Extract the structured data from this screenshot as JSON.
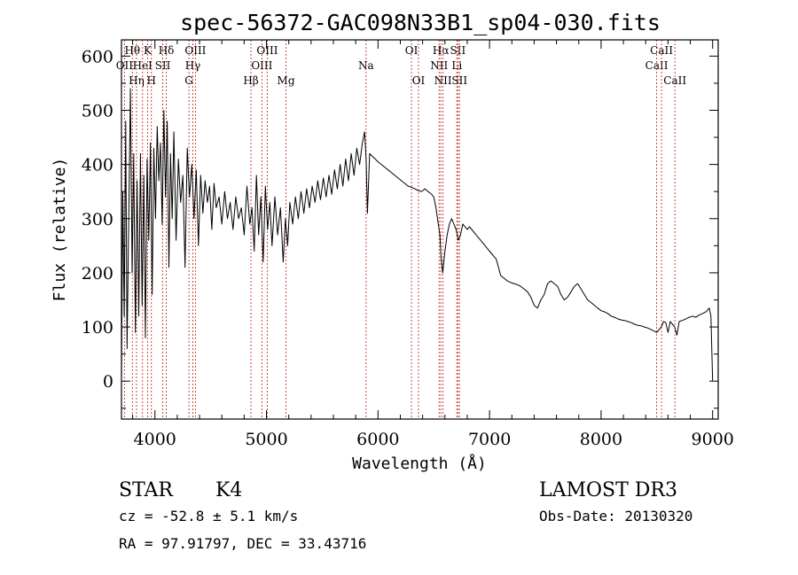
{
  "chart_data": {
    "type": "line",
    "title": "spec-56372-GAC098N33B1_sp04-030.fits",
    "xlabel": "Wavelength (Å)",
    "ylabel": "Flux (relative)",
    "xlim": [
      3700,
      9050
    ],
    "ylim": [
      -70,
      630
    ],
    "x_ticks": [
      4000,
      5000,
      6000,
      7000,
      8000,
      9000
    ],
    "y_ticks": [
      0,
      100,
      200,
      300,
      400,
      500,
      600
    ],
    "spectral_lines": [
      {
        "label": "OII",
        "wavelength": 3727,
        "row": 2
      },
      {
        "label": "Hθ",
        "wavelength": 3798,
        "row": 1
      },
      {
        "label": "Hη",
        "wavelength": 3835,
        "row": 3
      },
      {
        "label": "HeI",
        "wavelength": 3889,
        "row": 2
      },
      {
        "label": "K",
        "wavelength": 3934,
        "row": 1
      },
      {
        "label": "H",
        "wavelength": 3968,
        "row": 3
      },
      {
        "label": "SII",
        "wavelength": 4070,
        "row": 2
      },
      {
        "label": "Hδ",
        "wavelength": 4102,
        "row": 1
      },
      {
        "label": "G",
        "wavelength": 4305,
        "row": 3
      },
      {
        "label": "Hγ",
        "wavelength": 4340,
        "row": 2
      },
      {
        "label": "OIII",
        "wavelength": 4363,
        "row": 1
      },
      {
        "label": "Hβ",
        "wavelength": 4861,
        "row": 3
      },
      {
        "label": "OIII",
        "wavelength": 4959,
        "row": 2
      },
      {
        "label": "OIII",
        "wavelength": 5007,
        "row": 1
      },
      {
        "label": "Mg",
        "wavelength": 5175,
        "row": 3
      },
      {
        "label": "Na",
        "wavelength": 5893,
        "row": 2
      },
      {
        "label": "OI",
        "wavelength": 6300,
        "row": 1
      },
      {
        "label": "OI",
        "wavelength": 6363,
        "row": 3
      },
      {
        "label": "NII",
        "wavelength": 6548,
        "row": 2
      },
      {
        "label": "Hα",
        "wavelength": 6563,
        "row": 1
      },
      {
        "label": "NII",
        "wavelength": 6583,
        "row": 3
      },
      {
        "label": "Li",
        "wavelength": 6707,
        "row": 2
      },
      {
        "label": "SII",
        "wavelength": 6716,
        "row": 1
      },
      {
        "label": "SII",
        "wavelength": 6731,
        "row": 3
      },
      {
        "label": "CaII",
        "wavelength": 8498,
        "row": 2
      },
      {
        "label": "CaII",
        "wavelength": 8542,
        "row": 1
      },
      {
        "label": "CaII",
        "wavelength": 8662,
        "row": 3
      }
    ],
    "series": [
      {
        "name": "flux",
        "x": [
          3700,
          3712,
          3725,
          3738,
          3750,
          3765,
          3780,
          3795,
          3810,
          3825,
          3840,
          3855,
          3870,
          3885,
          3900,
          3915,
          3930,
          3945,
          3960,
          3975,
          3990,
          4005,
          4020,
          4035,
          4050,
          4065,
          4080,
          4095,
          4110,
          4125,
          4140,
          4155,
          4170,
          4190,
          4210,
          4230,
          4250,
          4270,
          4290,
          4310,
          4330,
          4350,
          4370,
          4390,
          4410,
          4430,
          4450,
          4470,
          4490,
          4510,
          4530,
          4550,
          4575,
          4600,
          4625,
          4650,
          4675,
          4700,
          4725,
          4750,
          4775,
          4800,
          4825,
          4850,
          4870,
          4890,
          4910,
          4930,
          4950,
          4970,
          4990,
          5010,
          5030,
          5050,
          5075,
          5100,
          5125,
          5150,
          5170,
          5190,
          5210,
          5235,
          5260,
          5285,
          5310,
          5335,
          5360,
          5385,
          5410,
          5435,
          5460,
          5485,
          5510,
          5535,
          5560,
          5585,
          5610,
          5635,
          5660,
          5685,
          5710,
          5735,
          5760,
          5785,
          5810,
          5835,
          5860,
          5880,
          5893,
          5905,
          5925,
          5950,
          5975,
          6000,
          6030,
          6060,
          6090,
          6120,
          6150,
          6180,
          6210,
          6240,
          6270,
          6300,
          6330,
          6360,
          6390,
          6420,
          6450,
          6480,
          6500,
          6520,
          6540,
          6555,
          6565,
          6580,
          6600,
          6620,
          6640,
          6660,
          6680,
          6700,
          6720,
          6740,
          6760,
          6780,
          6800,
          6820,
          6840,
          6860,
          6880,
          6900,
          6920,
          6940,
          6960,
          6980,
          7000,
          7020,
          7040,
          7060,
          7080,
          7100,
          7130,
          7160,
          7190,
          7220,
          7250,
          7280,
          7310,
          7340,
          7370,
          7400,
          7430,
          7460,
          7490,
          7520,
          7550,
          7580,
          7610,
          7640,
          7670,
          7700,
          7730,
          7760,
          7790,
          7820,
          7850,
          7880,
          7910,
          7940,
          7970,
          8000,
          8030,
          8060,
          8090,
          8120,
          8150,
          8180,
          8210,
          8240,
          8270,
          8300,
          8330,
          8360,
          8390,
          8420,
          8450,
          8480,
          8500,
          8520,
          8540,
          8560,
          8580,
          8600,
          8620,
          8640,
          8660,
          8680,
          8700,
          8730,
          8760,
          8790,
          8820,
          8850,
          8880,
          8910,
          8940,
          8970,
          8985,
          9000
        ],
        "y": [
          0,
          350,
          120,
          480,
          60,
          300,
          540,
          200,
          420,
          90,
          370,
          120,
          420,
          140,
          380,
          80,
          410,
          260,
          440,
          160,
          430,
          300,
          470,
          370,
          440,
          290,
          500,
          340,
          480,
          210,
          420,
          300,
          460,
          260,
          410,
          330,
          380,
          210,
          430,
          340,
          400,
          300,
          390,
          250,
          380,
          310,
          370,
          330,
          360,
          280,
          365,
          320,
          340,
          290,
          350,
          300,
          330,
          280,
          340,
          300,
          320,
          270,
          360,
          290,
          320,
          240,
          380,
          270,
          340,
          220,
          360,
          280,
          330,
          250,
          340,
          270,
          320,
          220,
          300,
          250,
          330,
          290,
          340,
          300,
          350,
          310,
          355,
          320,
          360,
          330,
          370,
          335,
          375,
          340,
          380,
          345,
          390,
          355,
          400,
          360,
          410,
          370,
          420,
          380,
          430,
          400,
          440,
          460,
          410,
          310,
          420,
          415,
          410,
          405,
          400,
          395,
          390,
          385,
          380,
          375,
          370,
          365,
          360,
          358,
          355,
          352,
          350,
          355,
          350,
          345,
          340,
          320,
          290,
          270,
          230,
          200,
          240,
          270,
          290,
          300,
          290,
          280,
          260,
          270,
          290,
          285,
          280,
          285,
          280,
          275,
          270,
          265,
          260,
          255,
          250,
          245,
          240,
          235,
          230,
          225,
          210,
          195,
          190,
          185,
          182,
          180,
          178,
          175,
          170,
          165,
          155,
          140,
          135,
          150,
          160,
          180,
          185,
          180,
          175,
          160,
          150,
          155,
          165,
          175,
          180,
          170,
          160,
          150,
          145,
          140,
          135,
          130,
          128,
          125,
          120,
          118,
          115,
          113,
          112,
          110,
          108,
          105,
          103,
          102,
          100,
          98,
          95,
          92,
          90,
          95,
          100,
          110,
          108,
          90,
          110,
          105,
          100,
          85,
          110,
          112,
          115,
          118,
          120,
          118,
          122,
          125,
          128,
          135,
          120,
          0
        ]
      }
    ]
  },
  "info": {
    "star_type": "STAR",
    "subclass": "K4",
    "cz": "cz = -52.8 ± 5.1 km/s",
    "radec": "RA =  97.91797, DEC =  33.43716",
    "survey": "LAMOST DR3",
    "obs_date": "Obs-Date: 20130320"
  }
}
